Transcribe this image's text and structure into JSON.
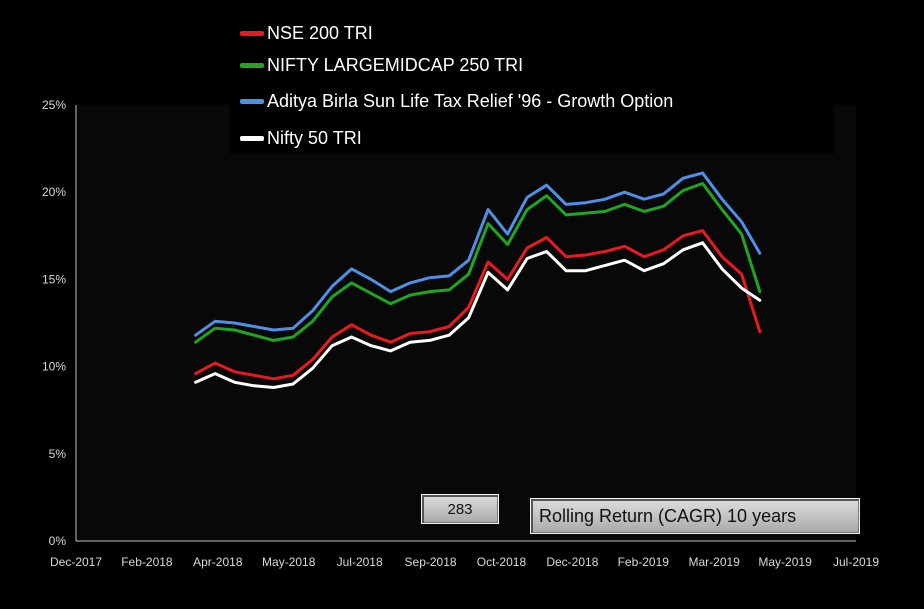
{
  "legend": [
    {
      "name": "NSE 200 TRI",
      "color": "#e8191f"
    },
    {
      "name": "NIFTY LARGEMIDCAP 250 TRI",
      "color": "#1fa51f"
    },
    {
      "name": "Aditya Birla Sun Life Tax Relief '96 - Growth Option",
      "color": "#4f8fe6"
    },
    {
      "name": "Nifty 50 TRI",
      "color": "#ffffff"
    }
  ],
  "counter": "283",
  "caption": "Rolling Return (CAGR) 10 years",
  "chart_data": {
    "type": "line",
    "title": "",
    "xlabel": "",
    "ylabel": "",
    "ylim": [
      0,
      25
    ],
    "y_ticks": [
      "0%",
      "5%",
      "10%",
      "15%",
      "20%",
      "25%"
    ],
    "x_ticks": [
      "Dec-2017",
      "Feb-2018",
      "Apr-2018",
      "May-2018",
      "Jul-2018",
      "Sep-2018",
      "Oct-2018",
      "Dec-2018",
      "Feb-2019",
      "Mar-2019",
      "May-2019",
      "Jul-2019"
    ],
    "x": [
      "2018-03-03",
      "2018-03-18",
      "2018-04-02",
      "2018-04-17",
      "2018-05-02",
      "2018-05-17",
      "2018-06-01",
      "2018-06-16",
      "2018-07-01",
      "2018-07-16",
      "2018-07-31",
      "2018-08-15",
      "2018-08-30",
      "2018-09-14",
      "2018-09-29",
      "2018-10-14",
      "2018-10-29",
      "2018-11-13",
      "2018-11-28",
      "2018-12-13",
      "2018-12-28",
      "2019-01-12",
      "2019-01-27",
      "2019-02-11",
      "2019-02-26",
      "2019-03-13",
      "2019-03-28",
      "2019-04-12",
      "2019-04-27",
      "2019-05-11"
    ],
    "legend_position": "top",
    "grid": false,
    "series": [
      {
        "name": "Aditya Birla Sun Life Tax Relief '96 - Growth Option",
        "color": "#4f8fe6",
        "values": [
          11.8,
          12.6,
          12.5,
          12.3,
          12.1,
          12.2,
          13.2,
          14.6,
          15.6,
          15.0,
          14.3,
          14.8,
          15.1,
          15.2,
          16.1,
          19.0,
          17.6,
          19.7,
          20.4,
          19.3,
          19.4,
          19.6,
          20.0,
          19.6,
          19.9,
          20.8,
          21.1,
          19.6,
          18.3,
          16.5
        ]
      },
      {
        "name": "NIFTY LARGEMIDCAP 250 TRI",
        "color": "#1fa51f",
        "values": [
          11.4,
          12.2,
          12.1,
          11.8,
          11.5,
          11.7,
          12.6,
          14.0,
          14.8,
          14.2,
          13.6,
          14.1,
          14.3,
          14.4,
          15.3,
          18.2,
          17.0,
          19.0,
          19.8,
          18.7,
          18.8,
          18.9,
          19.3,
          18.9,
          19.2,
          20.1,
          20.5,
          19.0,
          17.6,
          14.3
        ]
      },
      {
        "name": "NSE 200 TRI",
        "color": "#e8191f",
        "values": [
          9.6,
          10.2,
          9.7,
          9.5,
          9.3,
          9.5,
          10.4,
          11.7,
          12.4,
          11.8,
          11.4,
          11.9,
          12.0,
          12.3,
          13.4,
          16.0,
          15.0,
          16.8,
          17.4,
          16.3,
          16.4,
          16.6,
          16.9,
          16.3,
          16.7,
          17.5,
          17.8,
          16.3,
          15.3,
          12.0
        ]
      },
      {
        "name": "Nifty 50 TRI",
        "color": "#ffffff",
        "values": [
          9.1,
          9.6,
          9.1,
          8.9,
          8.8,
          9.0,
          9.9,
          11.2,
          11.7,
          11.2,
          10.9,
          11.4,
          11.5,
          11.8,
          12.8,
          15.4,
          14.4,
          16.2,
          16.6,
          15.5,
          15.5,
          15.8,
          16.1,
          15.5,
          15.9,
          16.7,
          17.1,
          15.6,
          14.5,
          13.8
        ]
      }
    ]
  }
}
